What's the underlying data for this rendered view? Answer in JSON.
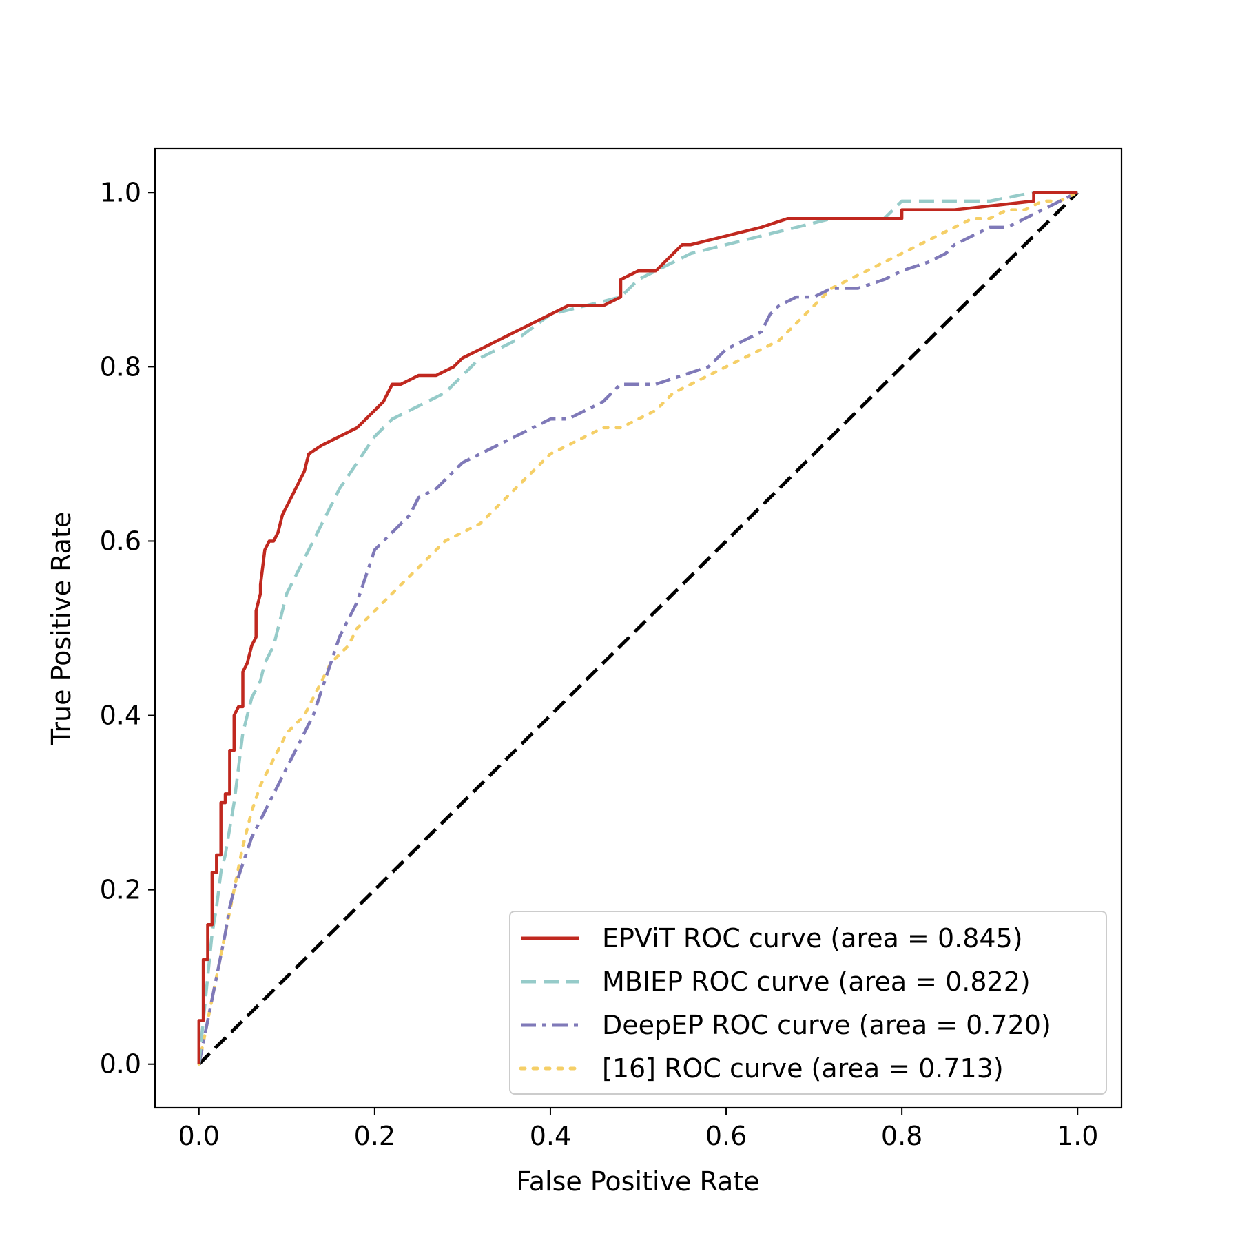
{
  "chart_data": {
    "type": "line",
    "title": "",
    "xlabel": "False Positive Rate",
    "ylabel": "True Positive Rate",
    "xlim": [
      -0.05,
      1.05
    ],
    "ylim": [
      -0.05,
      1.05
    ],
    "xticks": [
      "0.0",
      "0.2",
      "0.4",
      "0.6",
      "0.8",
      "1.0"
    ],
    "yticks": [
      "0.0",
      "0.2",
      "0.4",
      "0.6",
      "0.8",
      "1.0"
    ],
    "grid": false,
    "legend_position": "lower-right",
    "series": [
      {
        "name": "EPViT ROC curve (area = 0.845)",
        "color": "#c0281f",
        "style": "solid",
        "x": [
          0.0,
          0.0,
          0.005,
          0.005,
          0.01,
          0.01,
          0.015,
          0.015,
          0.02,
          0.02,
          0.025,
          0.025,
          0.03,
          0.03,
          0.035,
          0.035,
          0.04,
          0.04,
          0.045,
          0.05,
          0.05,
          0.055,
          0.06,
          0.065,
          0.065,
          0.07,
          0.07,
          0.075,
          0.075,
          0.08,
          0.085,
          0.09,
          0.095,
          0.1,
          0.105,
          0.11,
          0.115,
          0.12,
          0.125,
          0.125,
          0.14,
          0.16,
          0.18,
          0.19,
          0.2,
          0.21,
          0.22,
          0.23,
          0.25,
          0.27,
          0.29,
          0.3,
          0.32,
          0.34,
          0.36,
          0.38,
          0.4,
          0.42,
          0.44,
          0.46,
          0.48,
          0.48,
          0.5,
          0.52,
          0.53,
          0.54,
          0.55,
          0.56,
          0.6,
          0.64,
          0.67,
          0.72,
          0.8,
          0.8,
          0.85,
          0.86,
          0.95,
          0.95,
          1.0
        ],
        "y": [
          0.0,
          0.05,
          0.05,
          0.12,
          0.12,
          0.16,
          0.16,
          0.22,
          0.22,
          0.24,
          0.24,
          0.3,
          0.3,
          0.31,
          0.31,
          0.36,
          0.36,
          0.4,
          0.41,
          0.41,
          0.45,
          0.46,
          0.48,
          0.49,
          0.52,
          0.54,
          0.55,
          0.59,
          0.59,
          0.6,
          0.6,
          0.61,
          0.63,
          0.64,
          0.65,
          0.66,
          0.67,
          0.68,
          0.7,
          0.7,
          0.71,
          0.72,
          0.73,
          0.74,
          0.75,
          0.76,
          0.78,
          0.78,
          0.79,
          0.79,
          0.8,
          0.81,
          0.82,
          0.83,
          0.84,
          0.85,
          0.86,
          0.87,
          0.87,
          0.87,
          0.88,
          0.9,
          0.91,
          0.91,
          0.92,
          0.93,
          0.94,
          0.94,
          0.95,
          0.96,
          0.97,
          0.97,
          0.97,
          0.98,
          0.98,
          0.98,
          0.99,
          1.0,
          1.0
        ]
      },
      {
        "name": "MBIEP ROC curve (area = 0.822)",
        "color": "#96cbc9",
        "style": "dashed",
        "x": [
          0.0,
          0.005,
          0.01,
          0.015,
          0.02,
          0.025,
          0.03,
          0.035,
          0.04,
          0.045,
          0.05,
          0.055,
          0.06,
          0.065,
          0.07,
          0.075,
          0.08,
          0.085,
          0.09,
          0.1,
          0.11,
          0.12,
          0.13,
          0.14,
          0.15,
          0.16,
          0.18,
          0.2,
          0.22,
          0.24,
          0.26,
          0.28,
          0.3,
          0.32,
          0.36,
          0.4,
          0.44,
          0.48,
          0.5,
          0.52,
          0.54,
          0.56,
          0.6,
          0.64,
          0.68,
          0.72,
          0.78,
          0.8,
          0.85,
          0.9,
          0.95,
          1.0
        ],
        "y": [
          0.0,
          0.05,
          0.1,
          0.15,
          0.18,
          0.22,
          0.24,
          0.27,
          0.3,
          0.34,
          0.38,
          0.4,
          0.42,
          0.43,
          0.44,
          0.46,
          0.47,
          0.48,
          0.5,
          0.54,
          0.56,
          0.58,
          0.6,
          0.62,
          0.64,
          0.66,
          0.69,
          0.72,
          0.74,
          0.75,
          0.76,
          0.77,
          0.79,
          0.81,
          0.83,
          0.86,
          0.87,
          0.88,
          0.9,
          0.91,
          0.92,
          0.93,
          0.94,
          0.95,
          0.96,
          0.97,
          0.97,
          0.99,
          0.99,
          0.99,
          1.0,
          1.0
        ]
      },
      {
        "name": "DeepEP ROC curve (area = 0.720)",
        "color": "#7f79b8",
        "style": "dashdot",
        "x": [
          0.0,
          0.01,
          0.02,
          0.03,
          0.035,
          0.04,
          0.05,
          0.06,
          0.07,
          0.08,
          0.09,
          0.1,
          0.11,
          0.12,
          0.13,
          0.14,
          0.15,
          0.16,
          0.17,
          0.18,
          0.19,
          0.2,
          0.21,
          0.22,
          0.23,
          0.24,
          0.25,
          0.27,
          0.28,
          0.29,
          0.3,
          0.32,
          0.34,
          0.36,
          0.38,
          0.4,
          0.42,
          0.44,
          0.46,
          0.47,
          0.48,
          0.52,
          0.55,
          0.58,
          0.6,
          0.62,
          0.64,
          0.65,
          0.66,
          0.68,
          0.7,
          0.72,
          0.75,
          0.78,
          0.8,
          0.83,
          0.85,
          0.86,
          0.88,
          0.9,
          0.92,
          0.94,
          0.96,
          0.98,
          1.0
        ],
        "y": [
          0.0,
          0.05,
          0.1,
          0.15,
          0.18,
          0.2,
          0.23,
          0.26,
          0.28,
          0.3,
          0.32,
          0.34,
          0.36,
          0.38,
          0.4,
          0.43,
          0.46,
          0.49,
          0.51,
          0.53,
          0.56,
          0.59,
          0.6,
          0.61,
          0.62,
          0.63,
          0.65,
          0.66,
          0.67,
          0.68,
          0.69,
          0.7,
          0.71,
          0.72,
          0.73,
          0.74,
          0.74,
          0.75,
          0.76,
          0.77,
          0.78,
          0.78,
          0.79,
          0.8,
          0.82,
          0.83,
          0.84,
          0.86,
          0.87,
          0.88,
          0.88,
          0.89,
          0.89,
          0.9,
          0.91,
          0.92,
          0.93,
          0.94,
          0.95,
          0.96,
          0.96,
          0.97,
          0.98,
          0.99,
          1.0
        ]
      },
      {
        "name": "[16] ROC curve (area = 0.713)",
        "color": "#f5cf67",
        "style": "dotted",
        "x": [
          0.0,
          0.01,
          0.02,
          0.03,
          0.04,
          0.05,
          0.06,
          0.07,
          0.08,
          0.09,
          0.1,
          0.11,
          0.12,
          0.13,
          0.14,
          0.15,
          0.16,
          0.17,
          0.18,
          0.19,
          0.2,
          0.21,
          0.22,
          0.23,
          0.24,
          0.26,
          0.28,
          0.3,
          0.32,
          0.34,
          0.36,
          0.38,
          0.4,
          0.42,
          0.44,
          0.46,
          0.48,
          0.5,
          0.52,
          0.54,
          0.56,
          0.58,
          0.6,
          0.62,
          0.64,
          0.66,
          0.68,
          0.7,
          0.72,
          0.74,
          0.76,
          0.78,
          0.8,
          0.82,
          0.84,
          0.86,
          0.88,
          0.9,
          0.92,
          0.94,
          0.96,
          0.98,
          1.0
        ],
        "y": [
          0.0,
          0.05,
          0.1,
          0.15,
          0.2,
          0.25,
          0.29,
          0.32,
          0.34,
          0.36,
          0.38,
          0.39,
          0.4,
          0.42,
          0.44,
          0.46,
          0.47,
          0.48,
          0.5,
          0.51,
          0.52,
          0.53,
          0.54,
          0.55,
          0.56,
          0.58,
          0.6,
          0.61,
          0.62,
          0.64,
          0.66,
          0.68,
          0.7,
          0.71,
          0.72,
          0.73,
          0.73,
          0.74,
          0.75,
          0.77,
          0.78,
          0.79,
          0.8,
          0.81,
          0.82,
          0.83,
          0.85,
          0.87,
          0.89,
          0.9,
          0.91,
          0.92,
          0.93,
          0.94,
          0.95,
          0.96,
          0.97,
          0.97,
          0.98,
          0.98,
          0.99,
          0.99,
          1.0
        ]
      },
      {
        "name": "",
        "color": "#000000",
        "style": "dashed",
        "x": [
          0.0,
          1.0
        ],
        "y": [
          0.0,
          1.0
        ]
      }
    ]
  }
}
